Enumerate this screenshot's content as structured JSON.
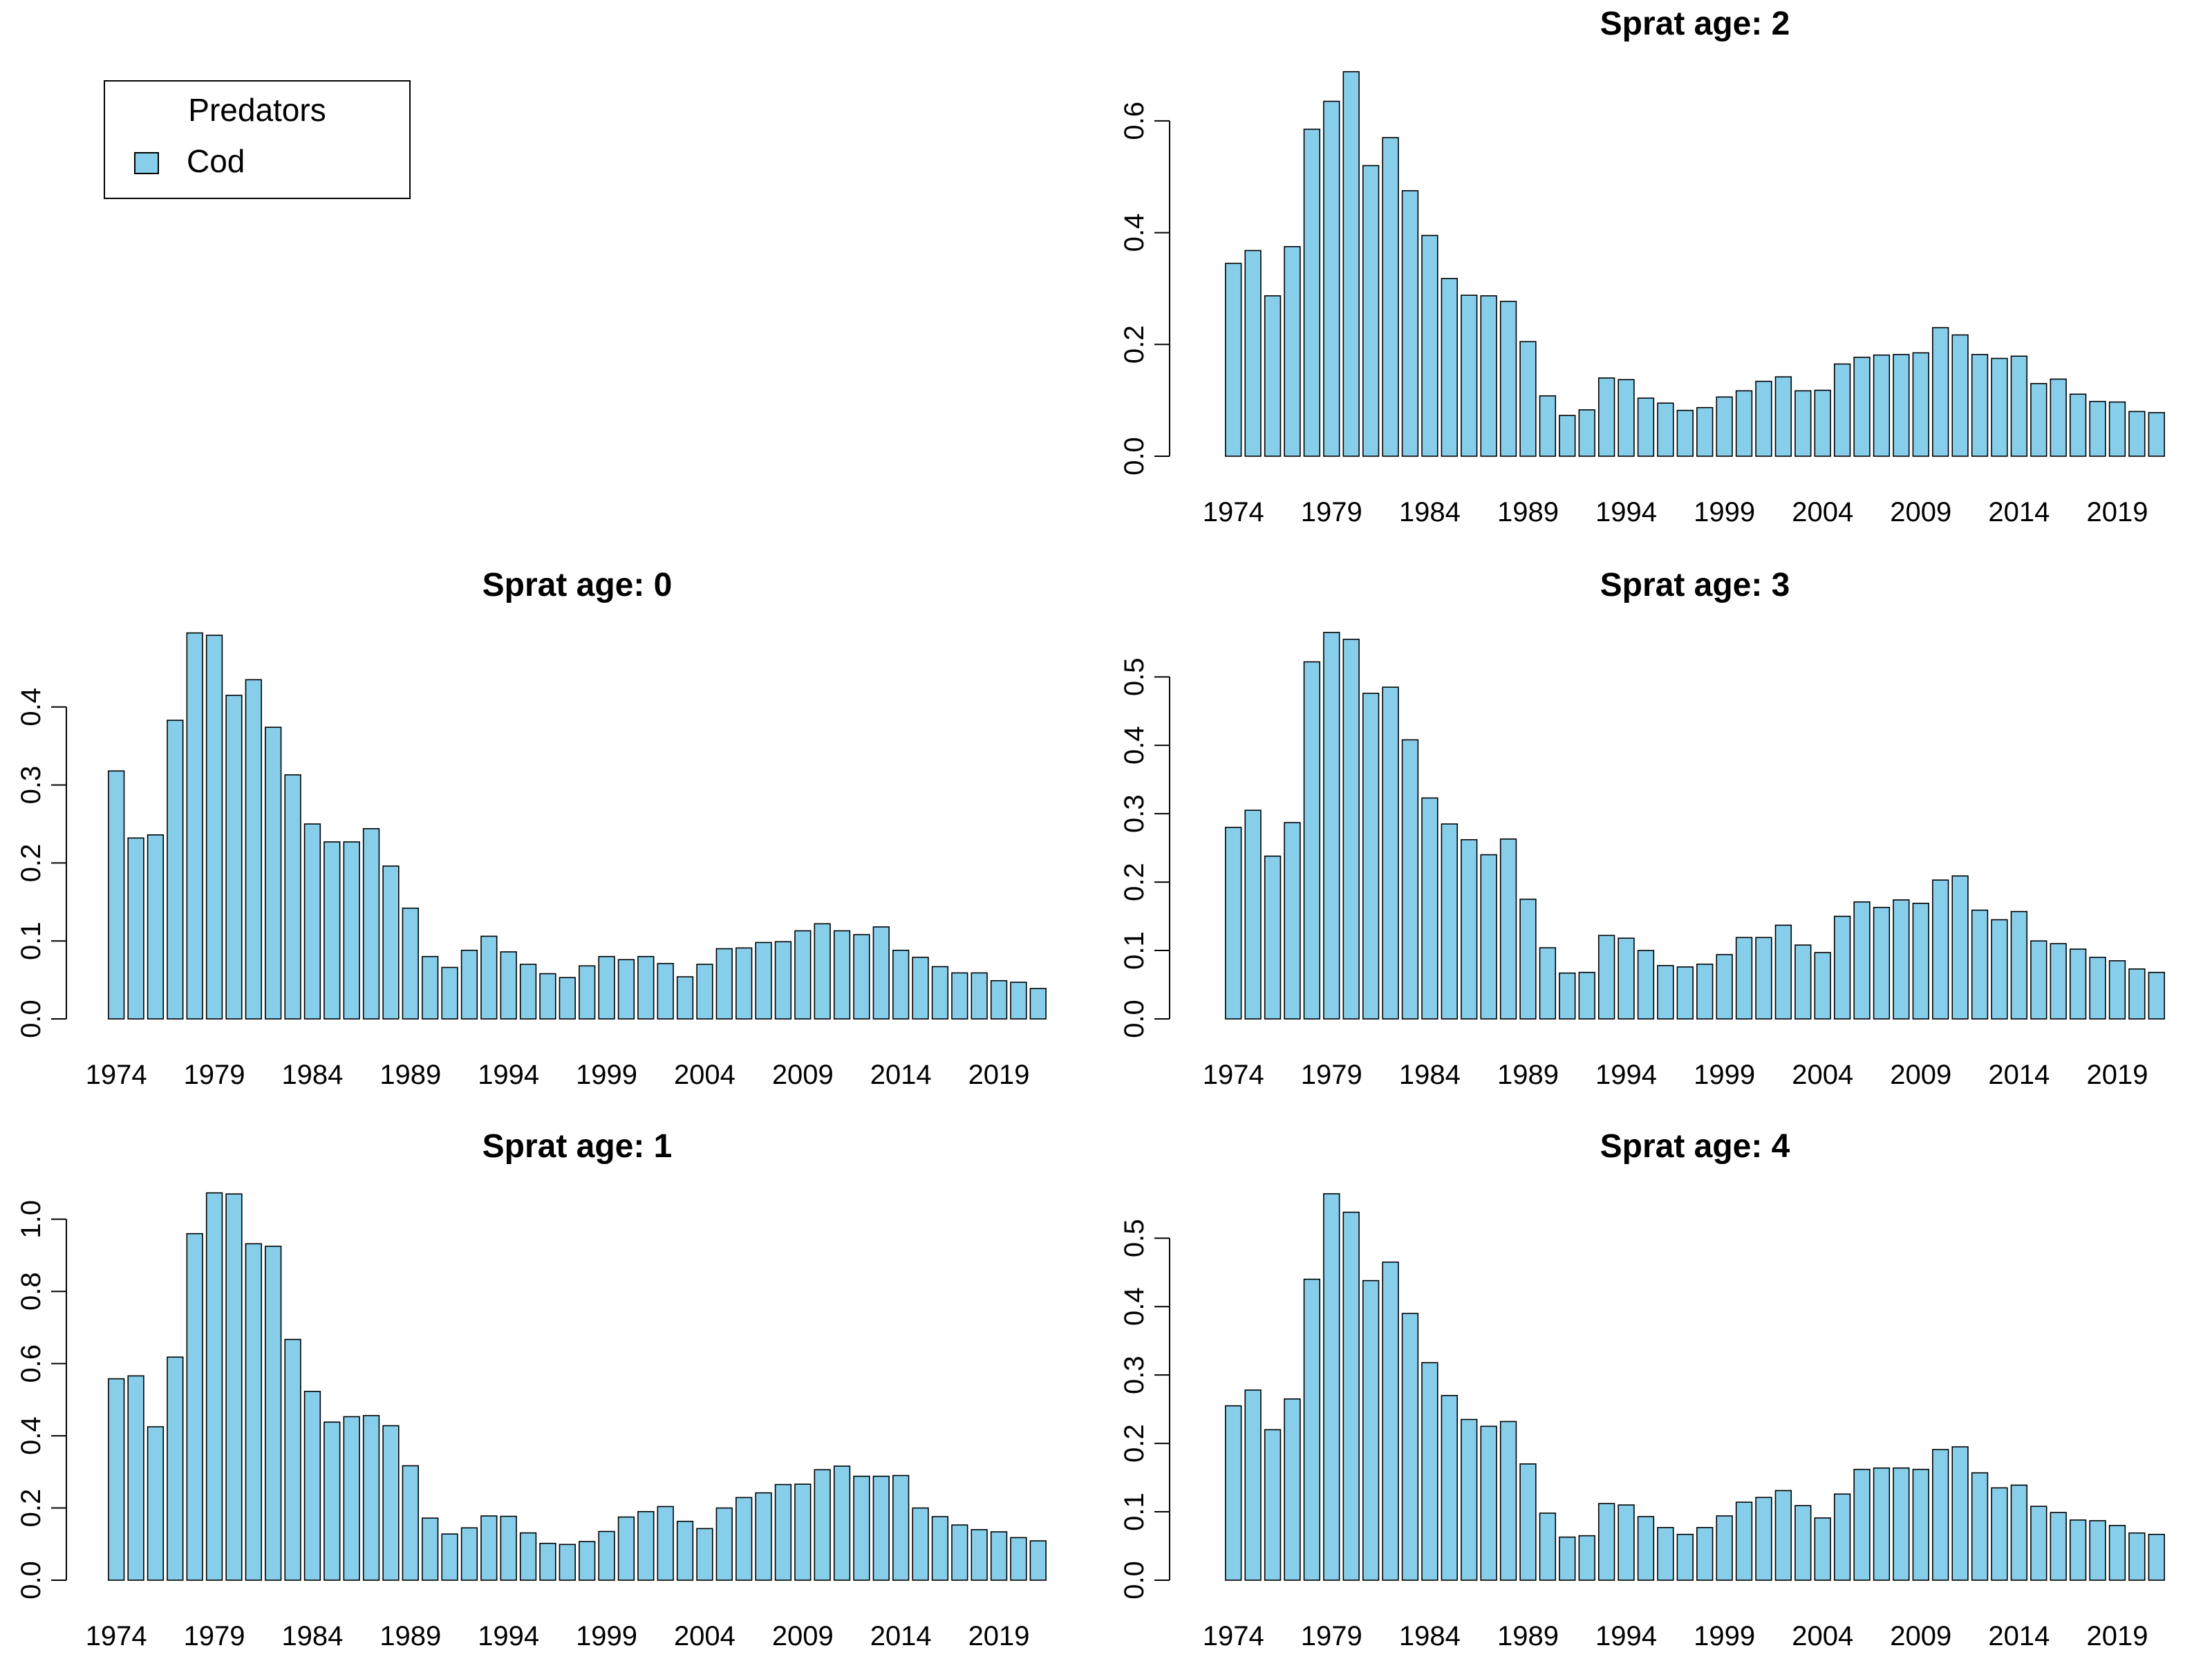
{
  "legend": {
    "title": "Predators",
    "entries": [
      {
        "label": "Cod",
        "color": "#87CEEB"
      }
    ]
  },
  "colors": {
    "bar_fill": "#87CEEB",
    "bar_stroke": "#000000",
    "axis": "#000000"
  },
  "chart_data": [
    {
      "type": "bar",
      "title": "Sprat age: 0",
      "xlabel": "",
      "ylabel": "",
      "categories": [
        1974,
        1975,
        1976,
        1977,
        1978,
        1979,
        1980,
        1981,
        1982,
        1983,
        1984,
        1985,
        1986,
        1987,
        1988,
        1989,
        1990,
        1991,
        1992,
        1993,
        1994,
        1995,
        1996,
        1997,
        1998,
        1999,
        2000,
        2001,
        2002,
        2003,
        2004,
        2005,
        2006,
        2007,
        2008,
        2009,
        2010,
        2011,
        2012,
        2013,
        2014,
        2015,
        2016,
        2017,
        2018,
        2019,
        2020,
        2021
      ],
      "x_tick_labels": [
        "1974",
        "1979",
        "1984",
        "1989",
        "1994",
        "1999",
        "2004",
        "2009",
        "2014",
        "2019"
      ],
      "y_ticks": [
        0.0,
        0.1,
        0.2,
        0.3,
        0.4
      ],
      "y_tick_labels": [
        "0.0",
        "0.1",
        "0.2",
        "0.3",
        "0.4"
      ],
      "ylim": [
        0,
        0.5
      ],
      "series": [
        {
          "name": "Cod",
          "values": [
            0.318,
            0.232,
            0.236,
            0.383,
            0.495,
            0.492,
            0.415,
            0.435,
            0.374,
            0.313,
            0.25,
            0.227,
            0.227,
            0.244,
            0.196,
            0.142,
            0.08,
            0.066,
            0.088,
            0.106,
            0.086,
            0.07,
            0.058,
            0.053,
            0.068,
            0.08,
            0.076,
            0.08,
            0.071,
            0.054,
            0.07,
            0.09,
            0.091,
            0.098,
            0.099,
            0.113,
            0.122,
            0.113,
            0.108,
            0.118,
            0.088,
            0.079,
            0.067,
            0.059,
            0.059,
            0.049,
            0.047,
            0.039
          ]
        }
      ]
    },
    {
      "type": "bar",
      "title": "Sprat age: 1",
      "xlabel": "",
      "ylabel": "",
      "categories": [
        1974,
        1975,
        1976,
        1977,
        1978,
        1979,
        1980,
        1981,
        1982,
        1983,
        1984,
        1985,
        1986,
        1987,
        1988,
        1989,
        1990,
        1991,
        1992,
        1993,
        1994,
        1995,
        1996,
        1997,
        1998,
        1999,
        2000,
        2001,
        2002,
        2003,
        2004,
        2005,
        2006,
        2007,
        2008,
        2009,
        2010,
        2011,
        2012,
        2013,
        2014,
        2015,
        2016,
        2017,
        2018,
        2019,
        2020,
        2021
      ],
      "x_tick_labels": [
        "1974",
        "1979",
        "1984",
        "1989",
        "1994",
        "1999",
        "2004",
        "2009",
        "2014",
        "2019"
      ],
      "y_ticks": [
        0.0,
        0.2,
        0.4,
        0.6,
        0.8,
        1.0
      ],
      "y_tick_labels": [
        "0.0",
        "0.2",
        "0.4",
        "0.6",
        "0.8",
        "1.0"
      ],
      "ylim": [
        0,
        1.08
      ],
      "series": [
        {
          "name": "Cod",
          "values": [
            0.558,
            0.566,
            0.425,
            0.618,
            0.96,
            1.073,
            1.07,
            0.932,
            0.925,
            0.667,
            0.523,
            0.438,
            0.453,
            0.456,
            0.428,
            0.317,
            0.172,
            0.128,
            0.145,
            0.178,
            0.177,
            0.131,
            0.102,
            0.099,
            0.107,
            0.135,
            0.175,
            0.19,
            0.204,
            0.163,
            0.143,
            0.2,
            0.229,
            0.242,
            0.265,
            0.266,
            0.306,
            0.316,
            0.288,
            0.288,
            0.29,
            0.2,
            0.176,
            0.153,
            0.14,
            0.134,
            0.118,
            0.109
          ]
        }
      ]
    },
    {
      "type": "bar",
      "title": "Sprat age: 2",
      "xlabel": "",
      "ylabel": "",
      "categories": [
        1974,
        1975,
        1976,
        1977,
        1978,
        1979,
        1980,
        1981,
        1982,
        1983,
        1984,
        1985,
        1986,
        1987,
        1988,
        1989,
        1990,
        1991,
        1992,
        1993,
        1994,
        1995,
        1996,
        1997,
        1998,
        1999,
        2000,
        2001,
        2002,
        2003,
        2004,
        2005,
        2006,
        2007,
        2008,
        2009,
        2010,
        2011,
        2012,
        2013,
        2014,
        2015,
        2016,
        2017,
        2018,
        2019,
        2020,
        2021
      ],
      "x_tick_labels": [
        "1974",
        "1979",
        "1984",
        "1989",
        "1994",
        "1999",
        "2004",
        "2009",
        "2014",
        "2019"
      ],
      "y_ticks": [
        0.0,
        0.2,
        0.4,
        0.6
      ],
      "y_tick_labels": [
        "0.0",
        "0.2",
        "0.4",
        "0.6"
      ],
      "ylim": [
        0,
        0.7
      ],
      "series": [
        {
          "name": "Cod",
          "values": [
            0.345,
            0.368,
            0.287,
            0.375,
            0.585,
            0.635,
            0.688,
            0.52,
            0.57,
            0.475,
            0.395,
            0.318,
            0.288,
            0.287,
            0.277,
            0.205,
            0.108,
            0.073,
            0.083,
            0.14,
            0.137,
            0.104,
            0.095,
            0.082,
            0.087,
            0.106,
            0.117,
            0.134,
            0.142,
            0.117,
            0.118,
            0.165,
            0.177,
            0.181,
            0.182,
            0.185,
            0.23,
            0.217,
            0.182,
            0.175,
            0.179,
            0.13,
            0.138,
            0.111,
            0.098,
            0.097,
            0.08,
            0.078
          ]
        }
      ]
    },
    {
      "type": "bar",
      "title": "Sprat age: 3",
      "xlabel": "",
      "ylabel": "",
      "categories": [
        1974,
        1975,
        1976,
        1977,
        1978,
        1979,
        1980,
        1981,
        1982,
        1983,
        1984,
        1985,
        1986,
        1987,
        1988,
        1989,
        1990,
        1991,
        1992,
        1993,
        1994,
        1995,
        1996,
        1997,
        1998,
        1999,
        2000,
        2001,
        2002,
        2003,
        2004,
        2005,
        2006,
        2007,
        2008,
        2009,
        2010,
        2011,
        2012,
        2013,
        2014,
        2015,
        2016,
        2017,
        2018,
        2019,
        2020,
        2021
      ],
      "x_tick_labels": [
        "1974",
        "1979",
        "1984",
        "1989",
        "1994",
        "1999",
        "2004",
        "2009",
        "2014",
        "2019"
      ],
      "y_ticks": [
        0.0,
        0.1,
        0.2,
        0.3,
        0.4,
        0.5
      ],
      "y_tick_labels": [
        "0.0",
        "0.1",
        "0.2",
        "0.3",
        "0.4",
        "0.5"
      ],
      "ylim": [
        0,
        0.57
      ],
      "series": [
        {
          "name": "Cod",
          "values": [
            0.28,
            0.305,
            0.238,
            0.287,
            0.522,
            0.565,
            0.555,
            0.476,
            0.485,
            0.408,
            0.323,
            0.285,
            0.262,
            0.24,
            0.263,
            0.175,
            0.104,
            0.067,
            0.068,
            0.122,
            0.118,
            0.1,
            0.078,
            0.076,
            0.08,
            0.094,
            0.119,
            0.119,
            0.137,
            0.108,
            0.097,
            0.15,
            0.171,
            0.163,
            0.174,
            0.169,
            0.203,
            0.209,
            0.159,
            0.145,
            0.157,
            0.114,
            0.11,
            0.102,
            0.09,
            0.085,
            0.073,
            0.068
          ]
        }
      ]
    },
    {
      "type": "bar",
      "title": "Sprat age: 4",
      "xlabel": "",
      "ylabel": "",
      "categories": [
        1974,
        1975,
        1976,
        1977,
        1978,
        1979,
        1980,
        1981,
        1982,
        1983,
        1984,
        1985,
        1986,
        1987,
        1988,
        1989,
        1990,
        1991,
        1992,
        1993,
        1994,
        1995,
        1996,
        1997,
        1998,
        1999,
        2000,
        2001,
        2002,
        2003,
        2004,
        2005,
        2006,
        2007,
        2008,
        2009,
        2010,
        2011,
        2012,
        2013,
        2014,
        2015,
        2016,
        2017,
        2018,
        2019,
        2020,
        2021
      ],
      "x_tick_labels": [
        "1974",
        "1979",
        "1984",
        "1989",
        "1994",
        "1999",
        "2004",
        "2009",
        "2014",
        "2019"
      ],
      "y_ticks": [
        0.0,
        0.1,
        0.2,
        0.3,
        0.4,
        0.5
      ],
      "y_tick_labels": [
        "0.0",
        "0.1",
        "0.2",
        "0.3",
        "0.4",
        "0.5"
      ],
      "ylim": [
        0,
        0.57
      ],
      "series": [
        {
          "name": "Cod",
          "values": [
            0.255,
            0.278,
            0.22,
            0.265,
            0.44,
            0.565,
            0.538,
            0.438,
            0.465,
            0.39,
            0.318,
            0.27,
            0.235,
            0.225,
            0.232,
            0.17,
            0.098,
            0.063,
            0.065,
            0.112,
            0.11,
            0.093,
            0.077,
            0.067,
            0.077,
            0.094,
            0.114,
            0.121,
            0.131,
            0.109,
            0.091,
            0.126,
            0.162,
            0.164,
            0.164,
            0.162,
            0.191,
            0.195,
            0.157,
            0.135,
            0.139,
            0.108,
            0.099,
            0.088,
            0.087,
            0.08,
            0.069,
            0.067
          ]
        }
      ]
    }
  ]
}
